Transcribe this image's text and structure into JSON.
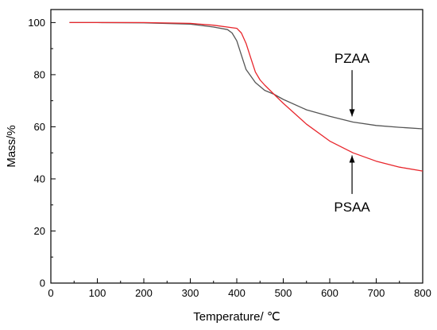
{
  "chart_data": {
    "type": "line",
    "xlabel": "Temperature/ ℃",
    "ylabel": "Mass/%",
    "xlim": [
      0,
      800
    ],
    "ylim": [
      0,
      105
    ],
    "xticks": [
      0,
      100,
      200,
      300,
      400,
      500,
      600,
      700,
      800
    ],
    "yticks": [
      0,
      20,
      40,
      60,
      80,
      100
    ],
    "grid": false,
    "legend": "none",
    "series": [
      {
        "name": "PZAA",
        "color": "#555555",
        "x": [
          40,
          100,
          200,
          300,
          350,
          380,
          390,
          400,
          410,
          420,
          440,
          460,
          480,
          500,
          550,
          600,
          650,
          700,
          750,
          800
        ],
        "y": [
          100,
          100,
          99.9,
          99.4,
          98.3,
          97.3,
          96.0,
          93.0,
          87.5,
          82.0,
          77.0,
          74.0,
          72.5,
          70.5,
          66.5,
          64.0,
          61.8,
          60.5,
          59.8,
          59.2
        ]
      },
      {
        "name": "PSAA",
        "color": "#e8262c",
        "x": [
          40,
          100,
          200,
          300,
          350,
          400,
          410,
          420,
          430,
          440,
          450,
          460,
          480,
          500,
          550,
          600,
          650,
          700,
          750,
          800
        ],
        "y": [
          100,
          100,
          100,
          99.7,
          99.0,
          97.8,
          96.0,
          92.0,
          86.5,
          81.0,
          78.0,
          76.0,
          72.5,
          69.0,
          61.0,
          54.5,
          50.0,
          46.8,
          44.5,
          43.0
        ]
      }
    ],
    "annotations": [
      {
        "text": "PZAA",
        "x": 648,
        "y": 84.5,
        "arrow_to": [
          648,
          64
        ]
      },
      {
        "text": "PSAA",
        "x": 648,
        "y": 27.5,
        "arrow_to": [
          648,
          49
        ]
      }
    ]
  }
}
